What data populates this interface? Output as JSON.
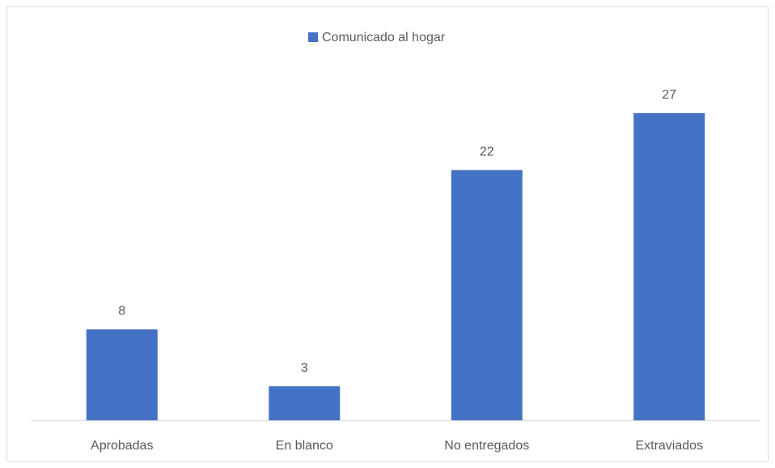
{
  "chart_data": {
    "type": "bar",
    "categories": [
      "Aprobadas",
      "En blanco",
      "No entregados",
      "Extraviados"
    ],
    "series": [
      {
        "name": "Comunicado al hogar",
        "color": "#4472c4",
        "values": [
          8,
          3,
          22,
          27
        ]
      }
    ],
    "legend": "top"
  }
}
